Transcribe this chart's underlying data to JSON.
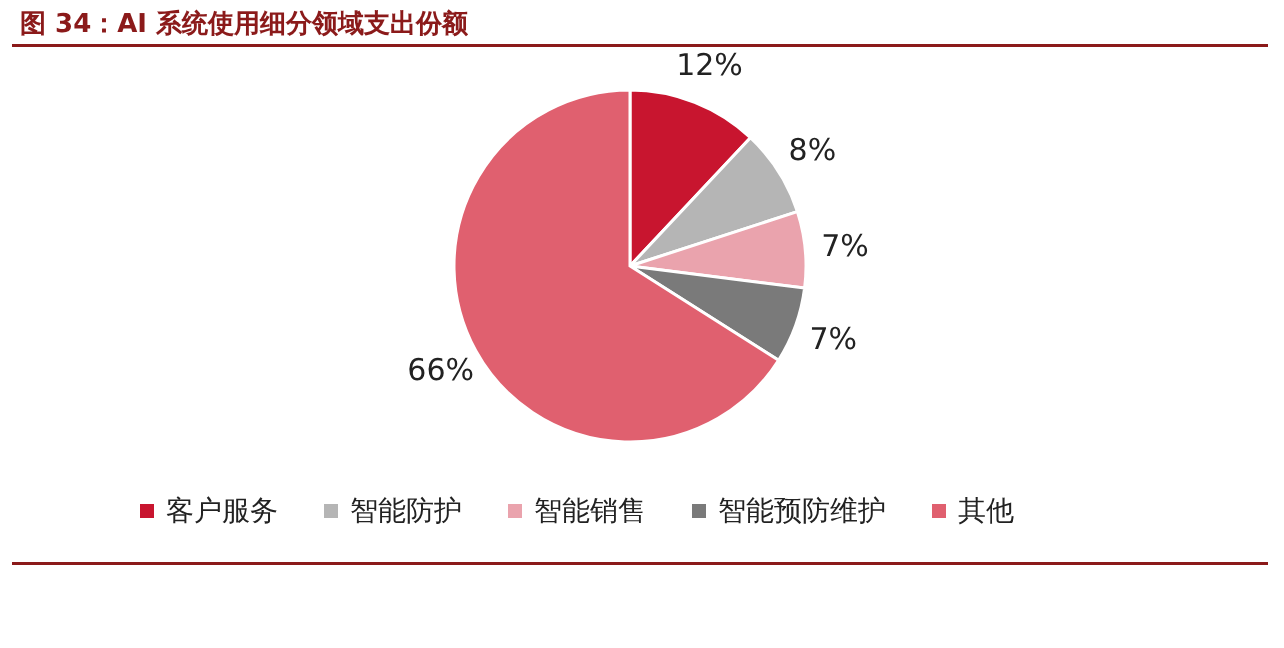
{
  "chart_data": {
    "type": "pie",
    "title": "图 34：AI 系统使用细分领域支出份额",
    "categories": [
      "客户服务",
      "智能防护",
      "智能销售",
      "智能预防维护",
      "其他"
    ],
    "values": [
      12,
      8,
      7,
      7,
      66
    ],
    "value_labels": [
      "12%",
      "8%",
      "7%",
      "7%",
      "66%"
    ],
    "colors": [
      "#c8152f",
      "#b5b5b5",
      "#eaa3ad",
      "#7a7a7a",
      "#e0606f"
    ],
    "legend": "bottom"
  }
}
